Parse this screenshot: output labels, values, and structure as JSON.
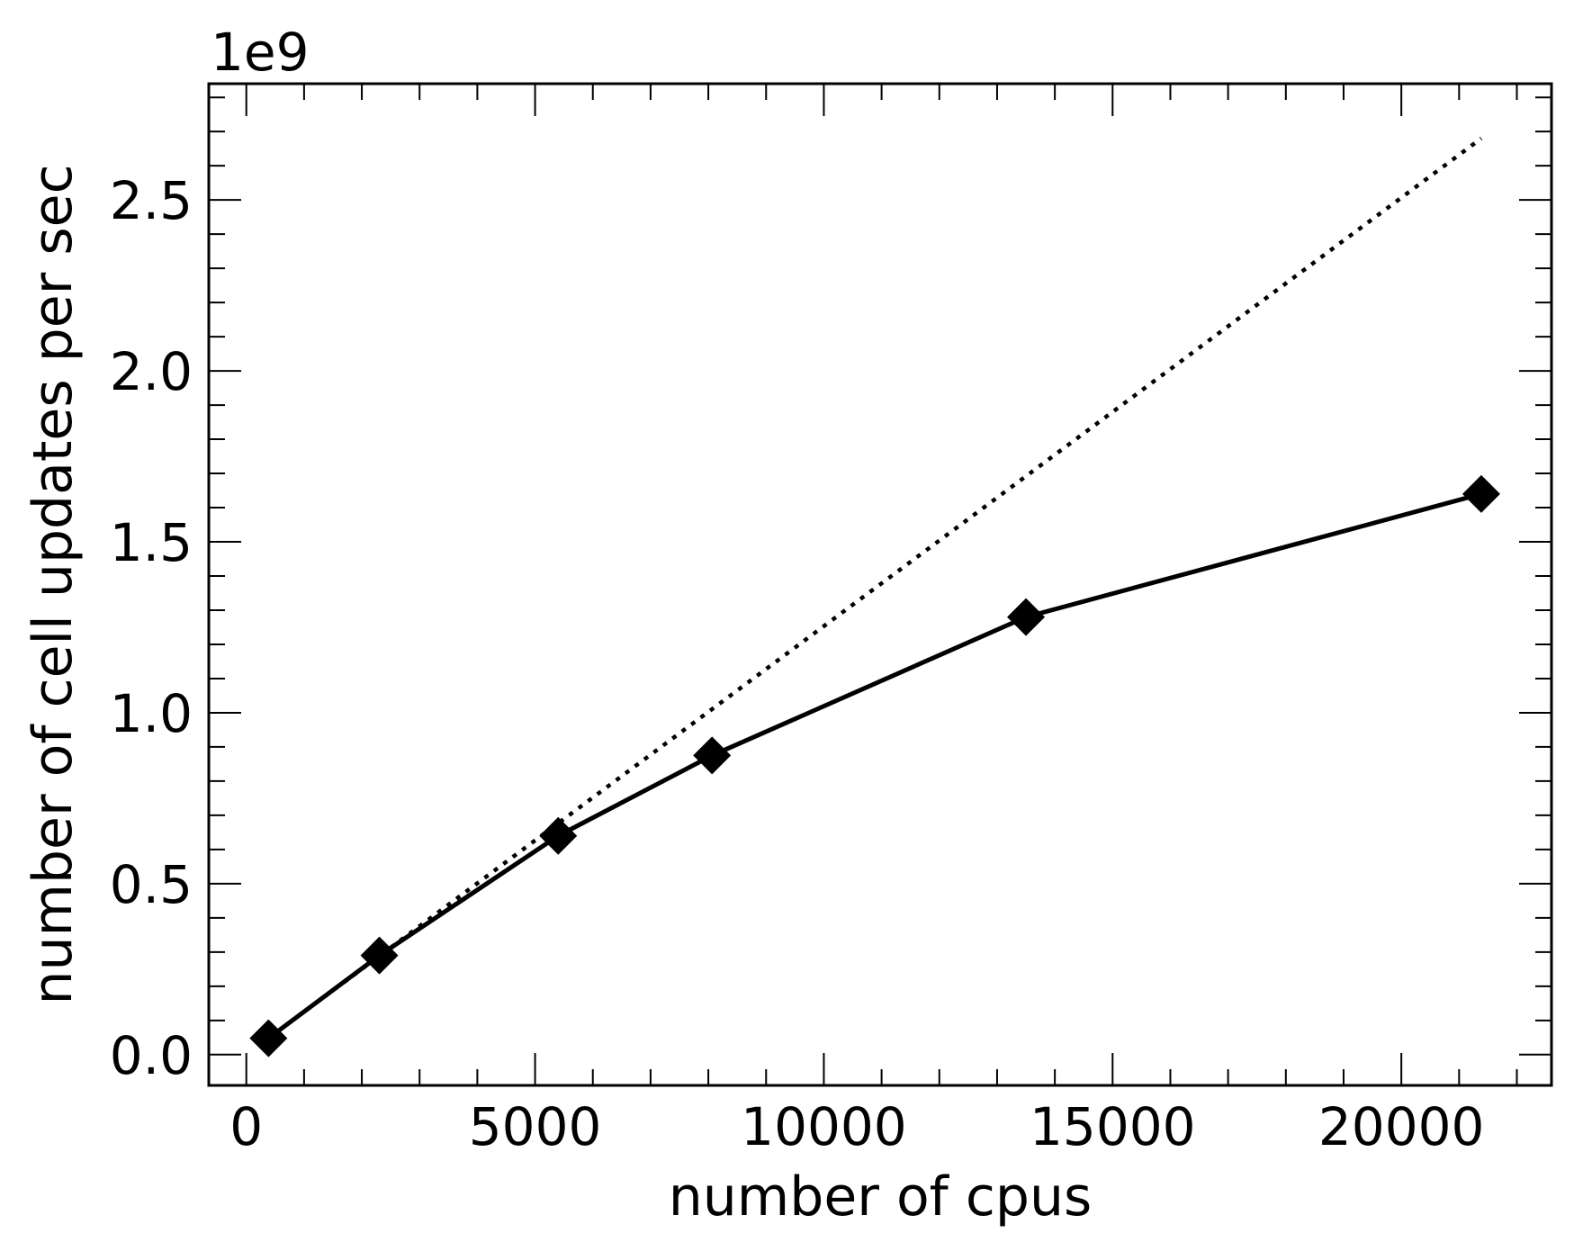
{
  "chart_data": {
    "type": "line",
    "title": "",
    "xlabel": "number of cpus",
    "ylabel": "number of cell updates per sec",
    "y_offset_label": "1e9",
    "xlim": [
      -650,
      22600
    ],
    "ylim": [
      -0.09,
      2.84
    ],
    "x_ticks": [
      0,
      5000,
      10000,
      15000,
      20000
    ],
    "x_tick_labels": [
      "0",
      "5000",
      "10000",
      "15000",
      "20000"
    ],
    "y_ticks": [
      0.0,
      0.5,
      1.0,
      1.5,
      2.0,
      2.5
    ],
    "y_tick_labels": [
      "0.0",
      "0.5",
      "1.0",
      "1.5",
      "2.0",
      "2.5"
    ],
    "grid": false,
    "series": [
      {
        "style": "solid",
        "marker": "diamond",
        "color": "#000000",
        "x": [
          384,
          2304,
          5400,
          8064,
          13500,
          21384
        ],
        "y": [
          0.048,
          0.29,
          0.64,
          0.875,
          1.28,
          1.64
        ]
      },
      {
        "style": "dotted",
        "marker": "none",
        "color": "#000000",
        "x": [
          384,
          21384
        ],
        "y": [
          0.048,
          2.68
        ]
      }
    ]
  }
}
